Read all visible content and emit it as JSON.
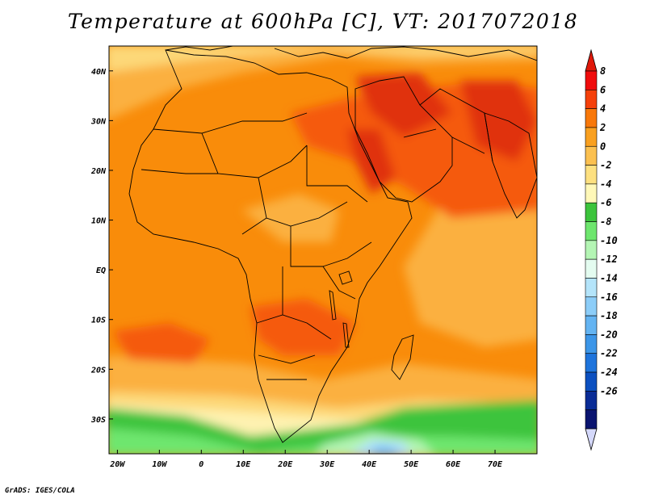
{
  "title": "Temperature at 600hPa [C], VT: 2017072018",
  "footer": "GrADS: IGES/COLA",
  "colors": {
    "dark_red": "#e0300a",
    "red_orange": "#f55a0a",
    "orange": "#f98c0a",
    "light_orange": "#fbb040",
    "pale_orange": "#fdd878",
    "cream": "#fef2b0",
    "dark_green": "#3cc43c",
    "green": "#6ee66e",
    "light_green": "#b4f5b4",
    "mint": "#e0fce8",
    "pale_blue": "#aee0fa",
    "blue": "#6cb8f5"
  },
  "map_data": {
    "lon_range": [
      -22,
      80
    ],
    "lat_range": [
      -37,
      45
    ],
    "x_ticks": [
      {
        "lon": -20,
        "label": "20W"
      },
      {
        "lon": -10,
        "label": "10W"
      },
      {
        "lon": 0,
        "label": "0"
      },
      {
        "lon": 10,
        "label": "10E"
      },
      {
        "lon": 20,
        "label": "20E"
      },
      {
        "lon": 30,
        "label": "30E"
      },
      {
        "lon": 40,
        "label": "40E"
      },
      {
        "lon": 50,
        "label": "50E"
      },
      {
        "lon": 60,
        "label": "60E"
      },
      {
        "lon": 70,
        "label": "70E"
      }
    ],
    "y_ticks": [
      {
        "lat": 40,
        "label": "40N"
      },
      {
        "lat": 30,
        "label": "30N"
      },
      {
        "lat": 20,
        "label": "20N"
      },
      {
        "lat": 10,
        "label": "10N"
      },
      {
        "lat": 0,
        "label": "EQ"
      },
      {
        "lat": -10,
        "label": "10S"
      },
      {
        "lat": -20,
        "label": "20S"
      },
      {
        "lat": -30,
        "label": "30S"
      }
    ]
  },
  "colorbar": {
    "levels": [
      "8",
      "6",
      "4",
      "2",
      "0",
      "-2",
      "-4",
      "-6",
      "-8",
      "-10",
      "-12",
      "-14",
      "-16",
      "-18",
      "-20",
      "-22",
      "-24",
      "-26"
    ],
    "colors": [
      "#f00c0c",
      "#f5400a",
      "#f8780a",
      "#f9a020",
      "#fbc050",
      "#fde080",
      "#fff8b8",
      "#3cc43c",
      "#6ee66e",
      "#b4f5b4",
      "#e4fcf0",
      "#b4e4fa",
      "#8ccdf8",
      "#64b4f2",
      "#3c96e8",
      "#1e74dc",
      "#0c50c0",
      "#0a2c96",
      "#0a1470"
    ],
    "top_arrow_color": "#e0180a",
    "bottom_arrow_color": "#d4d8fa"
  }
}
